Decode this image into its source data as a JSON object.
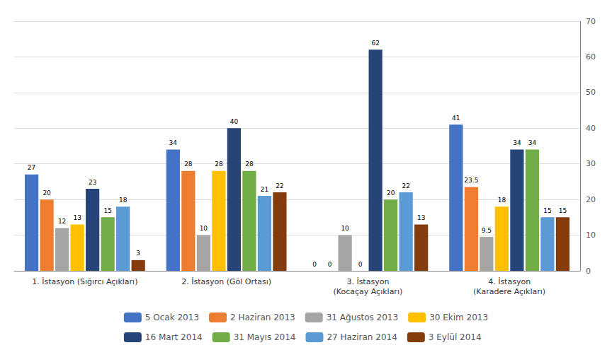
{
  "chart_data": {
    "type": "bar",
    "categories": [
      "1. İstasyon (Sığırcı Açıkları)",
      "2. İstasyon (Göl Ortası)",
      "3. İstasyon\n(Kocaçay Açıkları)",
      "4. İstasyon\n(Karadere Açıkları)"
    ],
    "series": [
      {
        "name": "5 Ocak 2013",
        "color": "#4472C4",
        "values": [
          27,
          34,
          0,
          41
        ]
      },
      {
        "name": "2 Haziran 2013",
        "color": "#ED7D31",
        "values": [
          20,
          28,
          0,
          23.5
        ]
      },
      {
        "name": "31 Ağustos 2013",
        "color": "#A5A5A5",
        "values": [
          12,
          10,
          10,
          9.5
        ]
      },
      {
        "name": "30 Ekim 2013",
        "color": "#FFC000",
        "values": [
          13,
          28,
          0,
          18
        ]
      },
      {
        "name": "16 Mart 2014",
        "color": "#264478",
        "values": [
          23,
          40,
          62,
          34
        ]
      },
      {
        "name": "31 Mayıs 2014",
        "color": "#70AD47",
        "values": [
          15,
          28,
          20,
          34
        ]
      },
      {
        "name": "27 Haziran 2014",
        "color": "#5B9BD5",
        "values": [
          18,
          21,
          22,
          15
        ]
      },
      {
        "name": "3 Eylül 2014",
        "color": "#843C0C",
        "values": [
          3,
          22,
          13,
          15
        ]
      }
    ],
    "ylim": [
      0,
      70
    ],
    "yticks": [
      0,
      10,
      20,
      30,
      40,
      50,
      60,
      70
    ],
    "grid": true,
    "legend": "bottom",
    "data_labels": true
  }
}
